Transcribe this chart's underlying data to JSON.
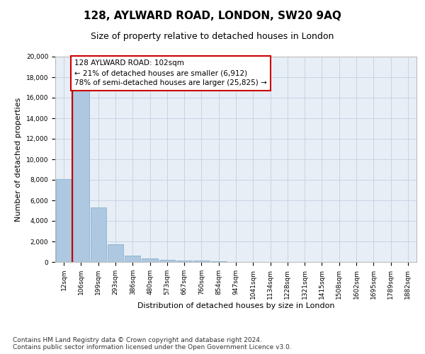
{
  "title": "128, AYLWARD ROAD, LONDON, SW20 9AQ",
  "subtitle": "Size of property relative to detached houses in London",
  "xlabel": "Distribution of detached houses by size in London",
  "ylabel": "Number of detached properties",
  "categories": [
    "12sqm",
    "106sqm",
    "199sqm",
    "293sqm",
    "386sqm",
    "480sqm",
    "573sqm",
    "667sqm",
    "760sqm",
    "854sqm",
    "947sqm",
    "1041sqm",
    "1134sqm",
    "1228sqm",
    "1321sqm",
    "1415sqm",
    "1508sqm",
    "1602sqm",
    "1695sqm",
    "1789sqm",
    "1882sqm"
  ],
  "values": [
    8100,
    16700,
    5300,
    1750,
    620,
    330,
    190,
    155,
    120,
    90,
    0,
    0,
    0,
    0,
    0,
    0,
    0,
    0,
    0,
    0,
    0
  ],
  "bar_color": "#adc8e0",
  "bar_edge_color": "#7aaac8",
  "annotation_text": "128 AYLWARD ROAD: 102sqm\n← 21% of detached houses are smaller (6,912)\n78% of semi-detached houses are larger (25,825) →",
  "annotation_box_color": "#ffffff",
  "annotation_border_color": "#cc0000",
  "vline_color": "#cc0000",
  "grid_color": "#c8d4e4",
  "bg_color": "#e8eef6",
  "ylim": [
    0,
    20000
  ],
  "yticks": [
    0,
    2000,
    4000,
    6000,
    8000,
    10000,
    12000,
    14000,
    16000,
    18000,
    20000
  ],
  "footnote": "Contains HM Land Registry data © Crown copyright and database right 2024.\nContains public sector information licensed under the Open Government Licence v3.0.",
  "title_fontsize": 11,
  "subtitle_fontsize": 9,
  "annotation_fontsize": 7.5,
  "footnote_fontsize": 6.5,
  "ylabel_fontsize": 8,
  "xlabel_fontsize": 8,
  "tick_fontsize": 6.5
}
